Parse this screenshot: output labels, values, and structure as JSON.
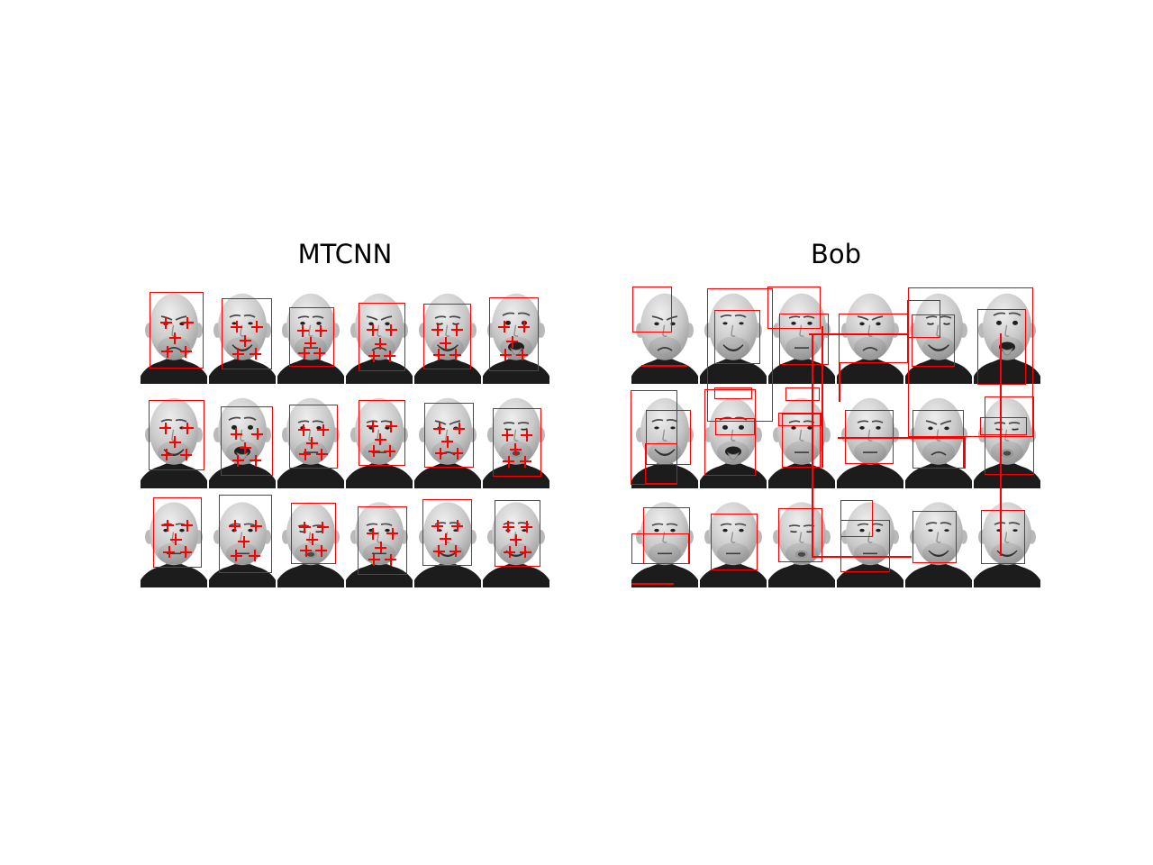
{
  "figure": {
    "background": "#ffffff",
    "box_color": "#fb0000",
    "title_color": "#000000"
  },
  "faces_grid": [
    "sad",
    "smile",
    "neutral",
    "sad",
    "squint",
    "tongue",
    "smile",
    "tongue",
    "neutral",
    "neutral",
    "sad",
    "pout",
    "neutral",
    "neutral",
    "pout",
    "neutral",
    "smile",
    "smile"
  ],
  "landmark_offsets": [
    [
      0.3,
      0.4
    ],
    [
      0.7,
      0.4
    ],
    [
      0.47,
      0.6
    ],
    [
      0.33,
      0.78
    ],
    [
      0.67,
      0.78
    ]
  ],
  "panels": [
    {
      "id": "mtcnn",
      "title": "MTCNN",
      "landmarks": true,
      "boxes": [
        [
          11,
          6,
          60,
          85
        ],
        [
          91,
          13,
          56,
          79
        ],
        [
          166,
          23,
          50,
          66
        ],
        [
          243,
          18,
          52,
          76
        ],
        [
          315,
          19,
          53,
          73
        ],
        [
          388,
          12,
          55,
          82
        ],
        [
          10,
          126,
          62,
          78
        ],
        [
          90,
          133,
          58,
          77
        ],
        [
          166,
          131,
          54,
          71
        ],
        [
          243,
          126,
          52,
          73
        ],
        [
          316,
          129,
          55,
          72
        ],
        [
          392,
          135,
          54,
          76
        ],
        [
          15,
          234,
          54,
          78
        ],
        [
          88,
          231,
          59,
          87
        ],
        [
          168,
          240,
          50,
          68
        ],
        [
          242,
          244,
          55,
          76
        ],
        [
          314,
          236,
          55,
          74
        ],
        [
          394,
          237,
          51,
          74
        ]
      ]
    },
    {
      "id": "bob",
      "title": "Bob",
      "landmarks": false,
      "boxes": [
        [
          2,
          0,
          44,
          51
        ],
        [
          12,
          87,
          51,
          0
        ],
        [
          85,
          2,
          73,
          148
        ],
        [
          93,
          26,
          51,
          60
        ],
        [
          152,
          0,
          59,
          47
        ],
        [
          165,
          30,
          55,
          57
        ],
        [
          198,
          52,
          110,
          0
        ],
        [
          201,
          52,
          0,
          247
        ],
        [
          212,
          44,
          0,
          157
        ],
        [
          231,
          30,
          77,
          55
        ],
        [
          231,
          85,
          0,
          43
        ],
        [
          308,
          1,
          139,
          166
        ],
        [
          307,
          15,
          37,
          42
        ],
        [
          312,
          31,
          48,
          58
        ],
        [
          385,
          25,
          54,
          84
        ],
        [
          410,
          52,
          0,
          247
        ],
        [
          0,
          115,
          52,
          105
        ],
        [
          17,
          137,
          50,
          61
        ],
        [
          16,
          174,
          36,
          45
        ],
        [
          82,
          114,
          57,
          96
        ],
        [
          94,
          146,
          44,
          19
        ],
        [
          93,
          112,
          42,
          13
        ],
        [
          164,
          140,
          48,
          15
        ],
        [
          168,
          141,
          43,
          60
        ],
        [
          172,
          112,
          38,
          15
        ],
        [
          238,
          137,
          54,
          60
        ],
        [
          230,
          167,
          140,
          0
        ],
        [
          370,
          167,
          0,
          35
        ],
        [
          313,
          137,
          57,
          65
        ],
        [
          393,
          122,
          55,
          87
        ],
        [
          388,
          145,
          52,
          20
        ],
        [
          14,
          245,
          52,
          30
        ],
        [
          1,
          274,
          64,
          34
        ],
        [
          14,
          245,
          52,
          63
        ],
        [
          89,
          252,
          52,
          63
        ],
        [
          164,
          246,
          49,
          60
        ],
        [
          201,
          299,
          111,
          0
        ],
        [
          233,
          237,
          36,
          41
        ],
        [
          233,
          259,
          55,
          58
        ],
        [
          313,
          249,
          49,
          58
        ],
        [
          389,
          248,
          49,
          60
        ],
        [
          1,
          329,
          47,
          0
        ]
      ]
    }
  ]
}
